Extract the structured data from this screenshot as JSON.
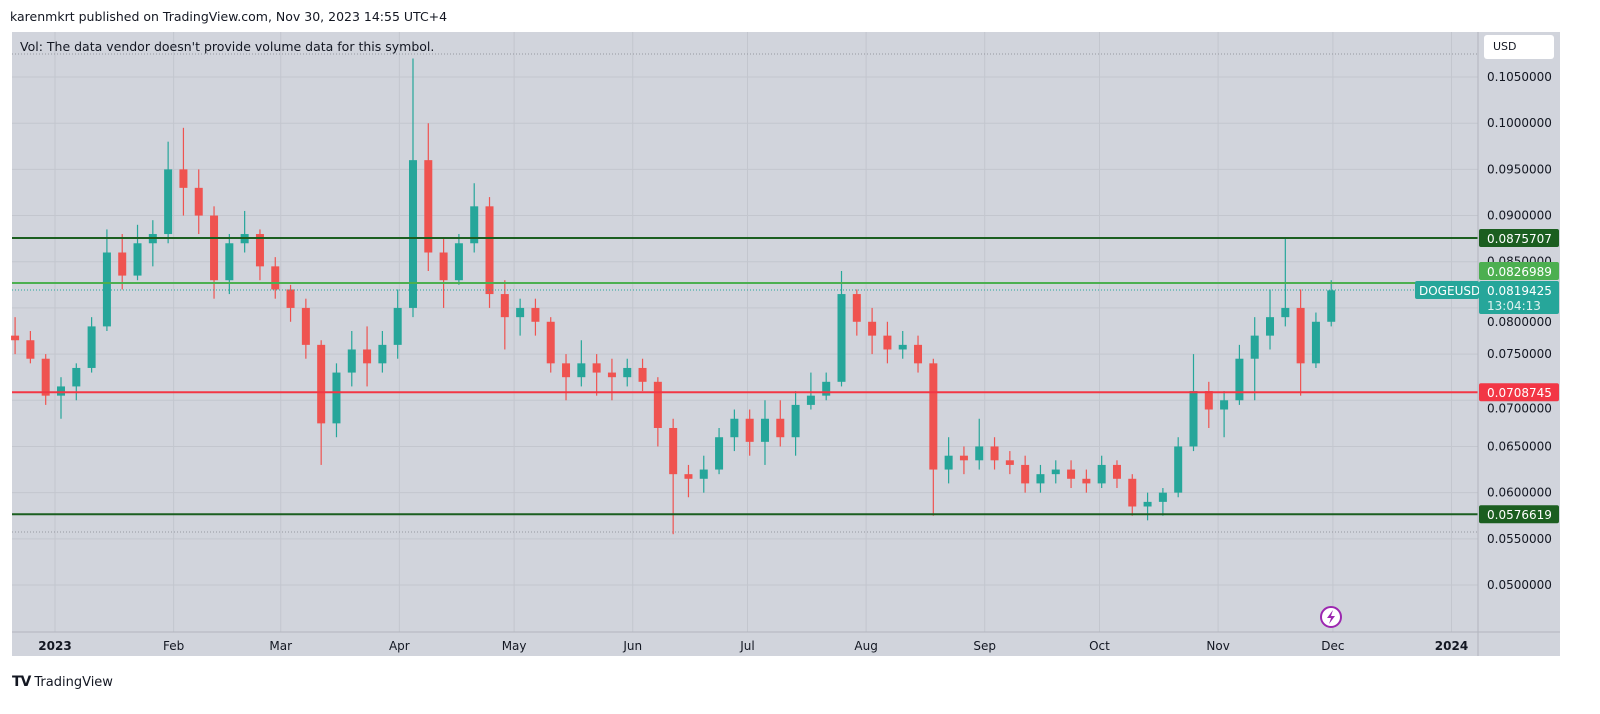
{
  "header": {
    "published": "karenmkrt published on TradingView.com, Nov 30, 2023 14:55 UTC+4"
  },
  "legend": {
    "volume_notice": "Vol: The data vendor doesn't provide volume data for this symbol."
  },
  "currency_button": "USD",
  "footer": {
    "brand": "TradingView"
  },
  "colors": {
    "background": "#d1d4dc",
    "up": "#26a69a",
    "down": "#ef5350",
    "level_dark_green": "#1b5e20",
    "level_green": "#4caf50",
    "level_red": "#f23645"
  },
  "chart_data": {
    "type": "candlestick",
    "symbol": "DOGEUSD",
    "ylim": [
      0.0465,
      0.1075
    ],
    "y_ticks": [
      "0.0500000",
      "0.0550000",
      "0.0600000",
      "0.0650000",
      "0.0700000",
      "0.0750000",
      "0.0800000",
      "0.0850000",
      "0.0900000",
      "0.0950000",
      "0.1000000",
      "0.1050000"
    ],
    "x_ticks": [
      {
        "label": "2023",
        "date": "2023-01-01",
        "bold": true
      },
      {
        "label": "Feb",
        "date": "2023-02-01"
      },
      {
        "label": "Mar",
        "date": "2023-03-01"
      },
      {
        "label": "Apr",
        "date": "2023-04-01"
      },
      {
        "label": "May",
        "date": "2023-05-01"
      },
      {
        "label": "Jun",
        "date": "2023-06-01"
      },
      {
        "label": "Jul",
        "date": "2023-07-01"
      },
      {
        "label": "Aug",
        "date": "2023-08-01"
      },
      {
        "label": "Sep",
        "date": "2023-09-01"
      },
      {
        "label": "Oct",
        "date": "2023-10-01"
      },
      {
        "label": "Nov",
        "date": "2023-11-01"
      },
      {
        "label": "Dec",
        "date": "2023-12-01"
      },
      {
        "label": "2024",
        "date": "2024-01-01",
        "bold": true
      }
    ],
    "levels": [
      {
        "price": "0.0875707",
        "color": "#1b5e20"
      },
      {
        "price": "0.0826989",
        "color": "#4caf50"
      },
      {
        "price": "0.0708745",
        "color": "#f23645"
      },
      {
        "price": "0.0576619",
        "color": "#1b5e20"
      }
    ],
    "last_price": {
      "symbol": "DOGEUSD",
      "price": "0.0819425",
      "countdown": "13:04:13",
      "color": "#26a69a"
    },
    "grid": true,
    "candles": [
      [
        "2022-12-20",
        0.077,
        0.079,
        0.075,
        0.0765
      ],
      [
        "2022-12-24",
        0.0765,
        0.0775,
        0.074,
        0.0745
      ],
      [
        "2022-12-28",
        0.0745,
        0.075,
        0.0695,
        0.0705
      ],
      [
        "2023-01-01",
        0.0705,
        0.0725,
        0.068,
        0.0715
      ],
      [
        "2023-01-05",
        0.0715,
        0.074,
        0.07,
        0.0735
      ],
      [
        "2023-01-09",
        0.0735,
        0.079,
        0.073,
        0.078
      ],
      [
        "2023-01-13",
        0.078,
        0.0885,
        0.0775,
        0.086
      ],
      [
        "2023-01-17",
        0.086,
        0.088,
        0.082,
        0.0835
      ],
      [
        "2023-01-21",
        0.0835,
        0.089,
        0.083,
        0.087
      ],
      [
        "2023-01-25",
        0.087,
        0.0895,
        0.0845,
        0.088
      ],
      [
        "2023-01-29",
        0.088,
        0.098,
        0.087,
        0.095
      ],
      [
        "2023-02-02",
        0.095,
        0.0995,
        0.09,
        0.093
      ],
      [
        "2023-02-06",
        0.093,
        0.095,
        0.088,
        0.09
      ],
      [
        "2023-02-10",
        0.09,
        0.091,
        0.081,
        0.083
      ],
      [
        "2023-02-14",
        0.083,
        0.088,
        0.0815,
        0.087
      ],
      [
        "2023-02-18",
        0.087,
        0.0905,
        0.086,
        0.088
      ],
      [
        "2023-02-22",
        0.088,
        0.0885,
        0.083,
        0.0845
      ],
      [
        "2023-02-26",
        0.0845,
        0.0855,
        0.081,
        0.082
      ],
      [
        "2023-03-02",
        0.082,
        0.0825,
        0.0785,
        0.08
      ],
      [
        "2023-03-06",
        0.08,
        0.081,
        0.0745,
        0.076
      ],
      [
        "2023-03-10",
        0.076,
        0.0765,
        0.063,
        0.0675
      ],
      [
        "2023-03-14",
        0.0675,
        0.074,
        0.066,
        0.073
      ],
      [
        "2023-03-18",
        0.073,
        0.0775,
        0.0715,
        0.0755
      ],
      [
        "2023-03-22",
        0.0755,
        0.078,
        0.0715,
        0.074
      ],
      [
        "2023-03-26",
        0.074,
        0.0775,
        0.073,
        0.076
      ],
      [
        "2023-03-30",
        0.076,
        0.082,
        0.0745,
        0.08
      ],
      [
        "2023-04-03",
        0.08,
        0.107,
        0.079,
        0.096
      ],
      [
        "2023-04-07",
        0.096,
        0.1,
        0.084,
        0.086
      ],
      [
        "2023-04-11",
        0.086,
        0.0875,
        0.08,
        0.083
      ],
      [
        "2023-04-15",
        0.083,
        0.088,
        0.0825,
        0.087
      ],
      [
        "2023-04-19",
        0.087,
        0.0935,
        0.086,
        0.091
      ],
      [
        "2023-04-23",
        0.091,
        0.092,
        0.08,
        0.0815
      ],
      [
        "2023-04-27",
        0.0815,
        0.083,
        0.0755,
        0.079
      ],
      [
        "2023-05-01",
        0.079,
        0.081,
        0.077,
        0.08
      ],
      [
        "2023-05-05",
        0.08,
        0.081,
        0.077,
        0.0785
      ],
      [
        "2023-05-09",
        0.0785,
        0.079,
        0.073,
        0.074
      ],
      [
        "2023-05-13",
        0.074,
        0.075,
        0.07,
        0.0725
      ],
      [
        "2023-05-17",
        0.0725,
        0.0765,
        0.0715,
        0.074
      ],
      [
        "2023-05-21",
        0.074,
        0.075,
        0.0705,
        0.073
      ],
      [
        "2023-05-25",
        0.073,
        0.0745,
        0.07,
        0.0725
      ],
      [
        "2023-05-29",
        0.0725,
        0.0745,
        0.0715,
        0.0735
      ],
      [
        "2023-06-02",
        0.0735,
        0.0745,
        0.071,
        0.072
      ],
      [
        "2023-06-06",
        0.072,
        0.0725,
        0.065,
        0.067
      ],
      [
        "2023-06-10",
        0.067,
        0.068,
        0.0555,
        0.062
      ],
      [
        "2023-06-14",
        0.062,
        0.063,
        0.0595,
        0.0615
      ],
      [
        "2023-06-18",
        0.0615,
        0.064,
        0.06,
        0.0625
      ],
      [
        "2023-06-22",
        0.0625,
        0.067,
        0.062,
        0.066
      ],
      [
        "2023-06-26",
        0.066,
        0.069,
        0.0645,
        0.068
      ],
      [
        "2023-06-30",
        0.068,
        0.069,
        0.064,
        0.0655
      ],
      [
        "2023-07-04",
        0.0655,
        0.07,
        0.063,
        0.068
      ],
      [
        "2023-07-08",
        0.068,
        0.07,
        0.065,
        0.066
      ],
      [
        "2023-07-12",
        0.066,
        0.071,
        0.064,
        0.0695
      ],
      [
        "2023-07-16",
        0.0695,
        0.073,
        0.069,
        0.0705
      ],
      [
        "2023-07-20",
        0.0705,
        0.073,
        0.07,
        0.072
      ],
      [
        "2023-07-24",
        0.072,
        0.084,
        0.0715,
        0.0815
      ],
      [
        "2023-07-28",
        0.0815,
        0.082,
        0.077,
        0.0785
      ],
      [
        "2023-08-01",
        0.0785,
        0.08,
        0.075,
        0.077
      ],
      [
        "2023-08-05",
        0.077,
        0.0785,
        0.074,
        0.0755
      ],
      [
        "2023-08-09",
        0.0755,
        0.0775,
        0.0745,
        0.076
      ],
      [
        "2023-08-13",
        0.076,
        0.077,
        0.073,
        0.074
      ],
      [
        "2023-08-17",
        0.074,
        0.0745,
        0.0575,
        0.0625
      ],
      [
        "2023-08-21",
        0.0625,
        0.066,
        0.061,
        0.064
      ],
      [
        "2023-08-25",
        0.064,
        0.065,
        0.062,
        0.0635
      ],
      [
        "2023-08-29",
        0.0635,
        0.068,
        0.0625,
        0.065
      ],
      [
        "2023-09-02",
        0.065,
        0.066,
        0.0625,
        0.0635
      ],
      [
        "2023-09-06",
        0.0635,
        0.0645,
        0.062,
        0.063
      ],
      [
        "2023-09-10",
        0.063,
        0.064,
        0.06,
        0.061
      ],
      [
        "2023-09-14",
        0.061,
        0.063,
        0.06,
        0.062
      ],
      [
        "2023-09-18",
        0.062,
        0.0635,
        0.061,
        0.0625
      ],
      [
        "2023-09-22",
        0.0625,
        0.0635,
        0.0605,
        0.0615
      ],
      [
        "2023-09-26",
        0.0615,
        0.0625,
        0.06,
        0.061
      ],
      [
        "2023-09-30",
        0.061,
        0.064,
        0.0605,
        0.063
      ],
      [
        "2023-10-04",
        0.063,
        0.0635,
        0.0605,
        0.0615
      ],
      [
        "2023-10-08",
        0.0615,
        0.062,
        0.0575,
        0.0585
      ],
      [
        "2023-10-12",
        0.0585,
        0.06,
        0.057,
        0.059
      ],
      [
        "2023-10-16",
        0.059,
        0.0605,
        0.0575,
        0.06
      ],
      [
        "2023-10-20",
        0.06,
        0.066,
        0.0595,
        0.065
      ],
      [
        "2023-10-24",
        0.065,
        0.075,
        0.0645,
        0.071
      ],
      [
        "2023-10-28",
        0.071,
        0.072,
        0.067,
        0.069
      ],
      [
        "2023-11-01",
        0.069,
        0.071,
        0.066,
        0.07
      ],
      [
        "2023-11-05",
        0.07,
        0.076,
        0.0695,
        0.0745
      ],
      [
        "2023-11-09",
        0.0745,
        0.079,
        0.07,
        0.077
      ],
      [
        "2023-11-13",
        0.077,
        0.082,
        0.0755,
        0.079
      ],
      [
        "2023-11-17",
        0.079,
        0.0875,
        0.078,
        0.08
      ],
      [
        "2023-11-21",
        0.08,
        0.082,
        0.0705,
        0.074
      ],
      [
        "2023-11-25",
        0.074,
        0.0795,
        0.0735,
        0.0785
      ],
      [
        "2023-11-29",
        0.0785,
        0.083,
        0.078,
        0.0819
      ]
    ]
  }
}
